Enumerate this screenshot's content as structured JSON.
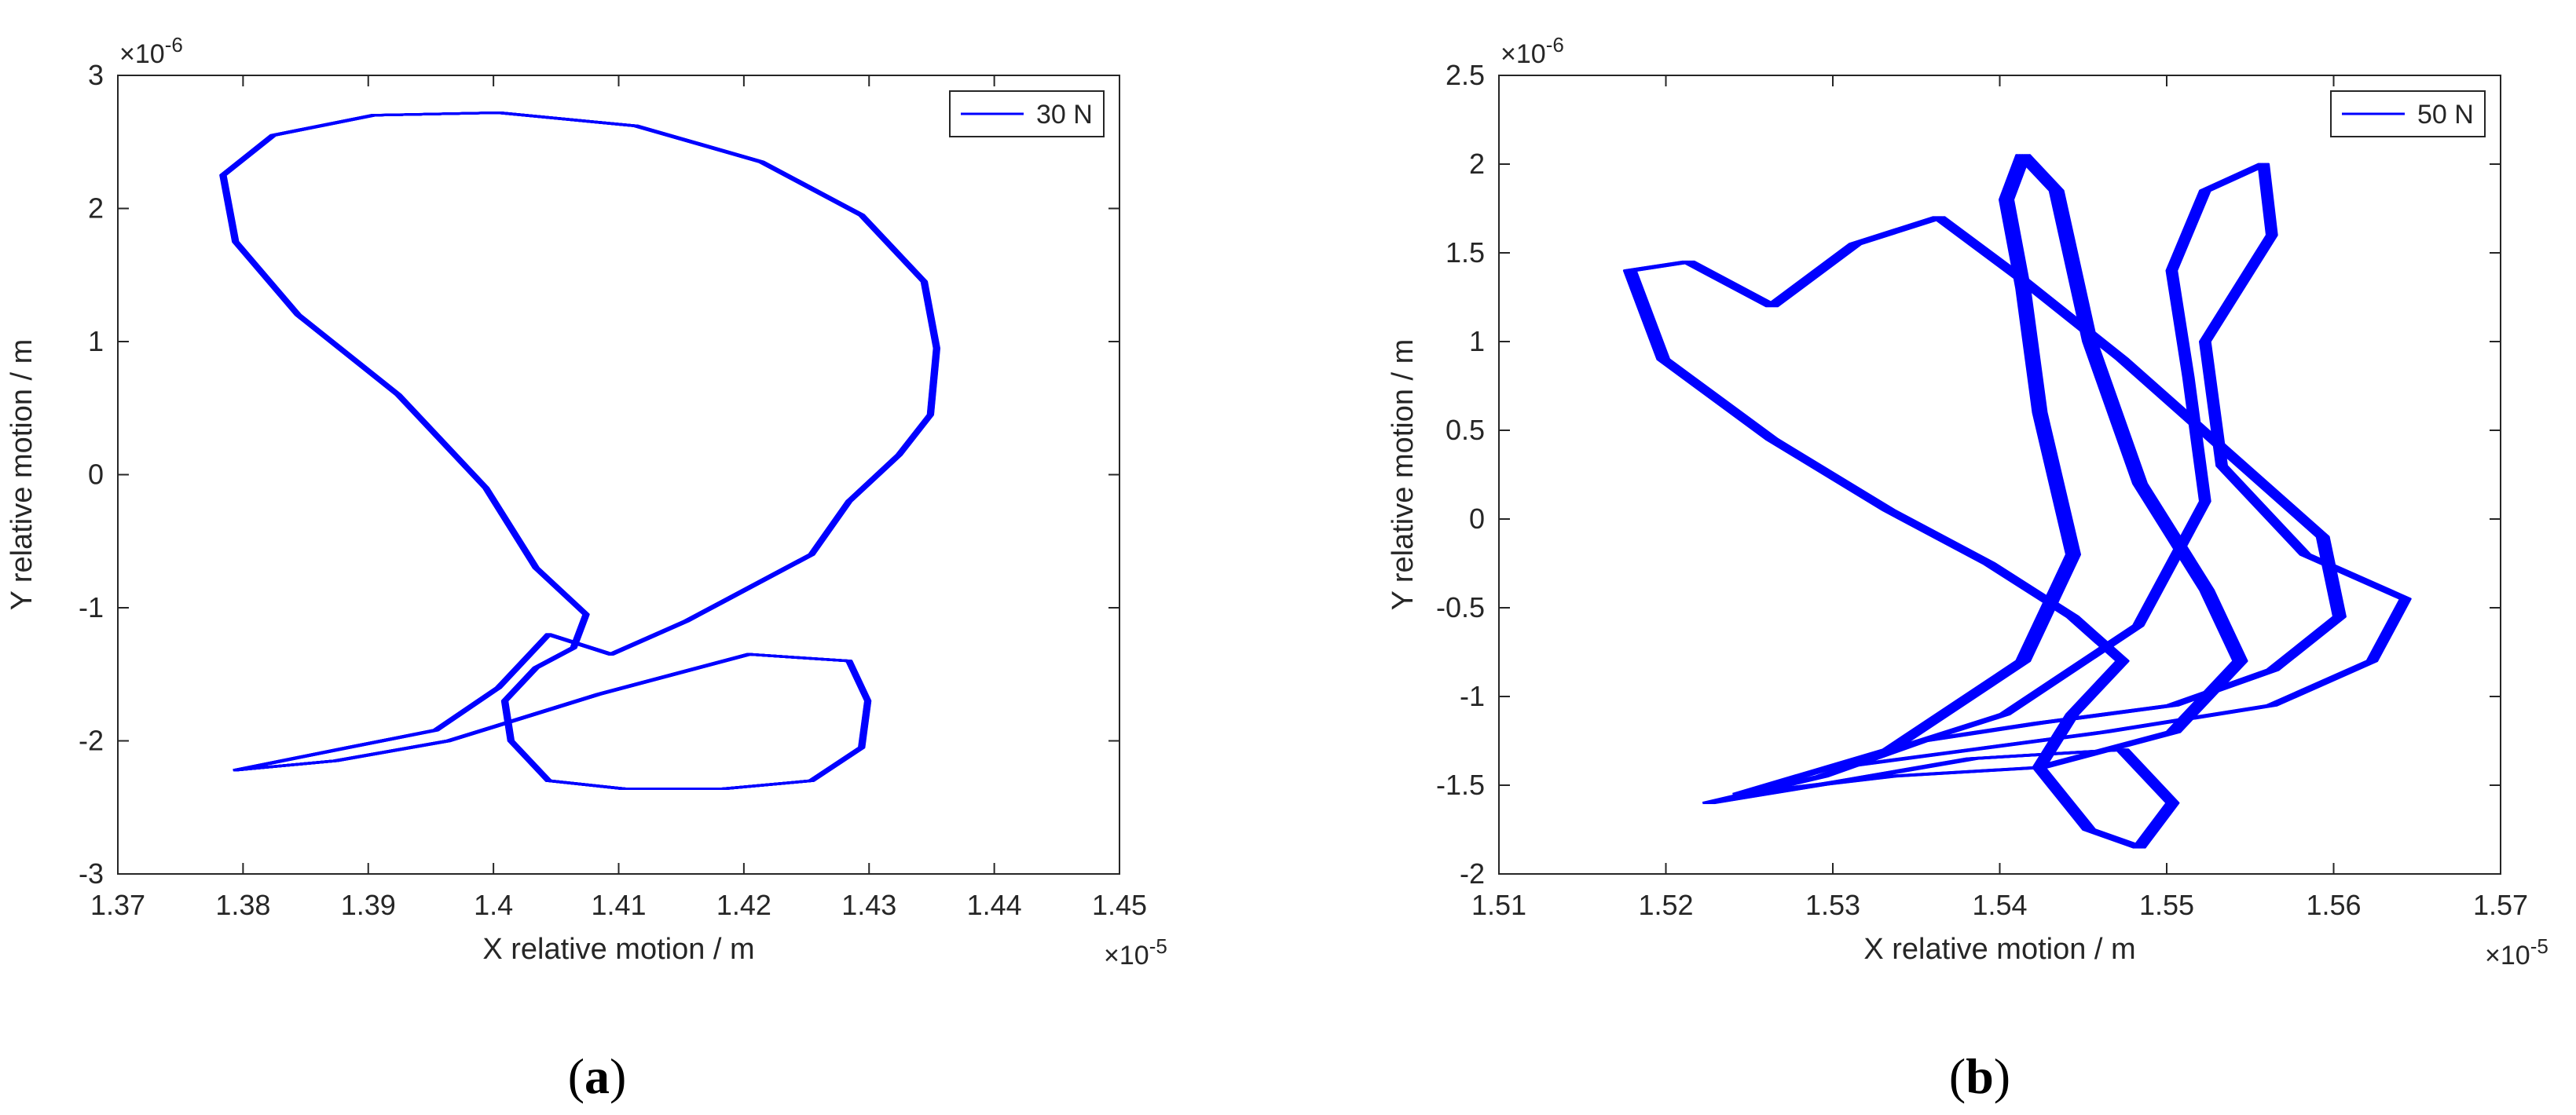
{
  "panels": [
    {
      "caption": {
        "open": "(",
        "letter": "a",
        "close": ")"
      },
      "chart_data": {
        "type": "line",
        "xlabel": "X relative motion / m",
        "ylabel": "Y relative motion / m",
        "x_exponent": "×10",
        "x_exponent_power": "-5",
        "y_exponent": "×10",
        "y_exponent_power": "-6",
        "xlim": [
          1.37,
          1.45
        ],
        "ylim": [
          -3,
          3
        ],
        "xticks": [
          "1.37",
          "1.38",
          "1.39",
          "1.4",
          "1.41",
          "1.42",
          "1.43",
          "1.44",
          "1.45"
        ],
        "yticks": [
          "-3",
          "-2",
          "-1",
          "0",
          "1",
          "2",
          "3"
        ],
        "xtick_values": [
          1.37,
          1.38,
          1.39,
          1.4,
          1.41,
          1.42,
          1.43,
          1.44,
          1.45
        ],
        "ytick_values": [
          -3,
          -2,
          -1,
          0,
          1,
          2,
          3
        ],
        "legend_position": "top-right",
        "grid": false,
        "series": [
          {
            "name": "30 N",
            "color": "#0000ff",
            "loops": 24,
            "dx": [
              0.0002,
              0.0006
            ],
            "dy": [
              0.0,
              0.0
            ],
            "path": [
              [
                1.379,
                -2.22
              ],
              [
                1.388,
                -2.05
              ],
              [
                1.395,
                -1.92
              ],
              [
                1.4,
                -1.6
              ],
              [
                1.404,
                -1.2
              ],
              [
                1.409,
                -1.35
              ],
              [
                1.415,
                -1.1
              ],
              [
                1.42,
                -0.85
              ],
              [
                1.425,
                -0.6
              ],
              [
                1.428,
                -0.2
              ],
              [
                1.432,
                0.15
              ],
              [
                1.4345,
                0.45
              ],
              [
                1.435,
                0.95
              ],
              [
                1.434,
                1.45
              ],
              [
                1.429,
                1.95
              ],
              [
                1.421,
                2.35
              ],
              [
                1.411,
                2.62
              ],
              [
                1.4,
                2.72
              ],
              [
                1.39,
                2.7
              ],
              [
                1.382,
                2.55
              ],
              [
                1.378,
                2.25
              ],
              [
                1.379,
                1.75
              ],
              [
                1.384,
                1.2
              ],
              [
                1.392,
                0.6
              ],
              [
                1.399,
                -0.1
              ],
              [
                1.403,
                -0.7
              ],
              [
                1.407,
                -1.05
              ],
              [
                1.406,
                -1.3
              ],
              [
                1.403,
                -1.45
              ],
              [
                1.4005,
                -1.7
              ],
              [
                1.401,
                -2.0
              ],
              [
                1.404,
                -2.3
              ],
              [
                1.41,
                -2.36
              ],
              [
                1.418,
                -2.36
              ],
              [
                1.425,
                -2.3
              ],
              [
                1.429,
                -2.05
              ],
              [
                1.4295,
                -1.7
              ],
              [
                1.428,
                -1.4
              ],
              [
                1.42,
                -1.35
              ],
              [
                1.408,
                -1.65
              ],
              [
                1.396,
                -2.0
              ],
              [
                1.387,
                -2.15
              ],
              [
                1.379,
                -2.22
              ]
            ]
          }
        ]
      }
    },
    {
      "caption": {
        "open": "(",
        "letter": "b",
        "close": ")"
      },
      "chart_data": {
        "type": "line",
        "xlabel": "X relative motion / m",
        "ylabel": "Y relative motion / m",
        "x_exponent": "×10",
        "x_exponent_power": "-5",
        "y_exponent": "×10",
        "y_exponent_power": "-6",
        "xlim": [
          1.51,
          1.57
        ],
        "ylim": [
          -2,
          2.5
        ],
        "xticks": [
          "1.51",
          "1.52",
          "1.53",
          "1.54",
          "1.55",
          "1.56",
          "1.57"
        ],
        "yticks": [
          "-2",
          "-1.5",
          "-1",
          "-0.5",
          "0",
          "0.5",
          "1",
          "1.5",
          "2",
          "2.5"
        ],
        "xtick_values": [
          1.51,
          1.52,
          1.53,
          1.54,
          1.55,
          1.56,
          1.57
        ],
        "ytick_values": [
          -2,
          -1.5,
          -1,
          -0.5,
          0,
          0.5,
          1,
          1.5,
          2,
          2.5
        ],
        "legend_position": "top-right",
        "grid": false,
        "series": [
          {
            "name": "50 N",
            "color": "#0000ff",
            "loops": 14,
            "dx": [
              0.0,
              0.0007
            ],
            "dy": [
              0.0,
              0.0
            ],
            "path": [
              [
                1.5222,
                -1.6
              ],
              [
                1.529,
                -1.45
              ],
              [
                1.535,
                -1.25
              ],
              [
                1.542,
                -1.15
              ],
              [
                1.55,
                -1.05
              ],
              [
                1.556,
                -0.85
              ],
              [
                1.56,
                -0.55
              ],
              [
                1.559,
                -0.1
              ],
              [
                1.553,
                0.4
              ],
              [
                1.547,
                0.9
              ],
              [
                1.541,
                1.35
              ],
              [
                1.536,
                1.7
              ],
              [
                1.531,
                1.55
              ],
              [
                1.526,
                1.2
              ],
              [
                1.521,
                1.45
              ],
              [
                1.5175,
                1.4
              ],
              [
                1.5195,
                0.9
              ],
              [
                1.526,
                0.45
              ],
              [
                1.533,
                0.05
              ],
              [
                1.539,
                -0.25
              ],
              [
                1.544,
                -0.55
              ],
              [
                1.547,
                -0.8
              ],
              [
                1.544,
                -1.1
              ],
              [
                1.542,
                -1.4
              ],
              [
                1.545,
                -1.75
              ],
              [
                1.548,
                -1.85
              ],
              [
                1.55,
                -1.6
              ],
              [
                1.547,
                -1.3
              ],
              [
                1.538,
                -1.35
              ],
              [
                1.53,
                -1.48
              ],
              [
                1.5222,
                -1.6
              ]
            ]
          },
          {
            "name": "",
            "color": "#0000ff",
            "loops": 10,
            "dx": [
              0.0,
              0.0008
            ],
            "dy": [
              0.0,
              0.0
            ],
            "path": [
              [
                1.524,
                -1.55
              ],
              [
                1.533,
                -1.3
              ],
              [
                1.541,
                -0.8
              ],
              [
                1.544,
                -0.2
              ],
              [
                1.542,
                0.6
              ],
              [
                1.541,
                1.3
              ],
              [
                1.54,
                1.8
              ],
              [
                1.541,
                2.05
              ],
              [
                1.543,
                1.85
              ],
              [
                1.545,
                1.0
              ],
              [
                1.548,
                0.2
              ],
              [
                1.552,
                -0.4
              ],
              [
                1.554,
                -0.8
              ],
              [
                1.55,
                -1.2
              ],
              [
                1.542,
                -1.4
              ],
              [
                1.533,
                -1.45
              ],
              [
                1.524,
                -1.55
              ]
            ]
          },
          {
            "name": "",
            "color": "#0000ff",
            "loops": 10,
            "dx": [
              0.0,
              0.0006
            ],
            "dy": [
              0.0,
              0.0
            ],
            "path": [
              [
                1.53,
                -1.4
              ],
              [
                1.54,
                -1.1
              ],
              [
                1.548,
                -0.6
              ],
              [
                1.552,
                0.1
              ],
              [
                1.551,
                0.8
              ],
              [
                1.55,
                1.4
              ],
              [
                1.552,
                1.85
              ],
              [
                1.5555,
                2.0
              ],
              [
                1.556,
                1.6
              ],
              [
                1.552,
                1.0
              ],
              [
                1.553,
                0.3
              ],
              [
                1.558,
                -0.2
              ],
              [
                1.564,
                -0.45
              ],
              [
                1.562,
                -0.8
              ],
              [
                1.556,
                -1.05
              ],
              [
                1.546,
                -1.2
              ],
              [
                1.538,
                -1.3
              ],
              [
                1.53,
                -1.4
              ]
            ]
          }
        ]
      }
    }
  ]
}
